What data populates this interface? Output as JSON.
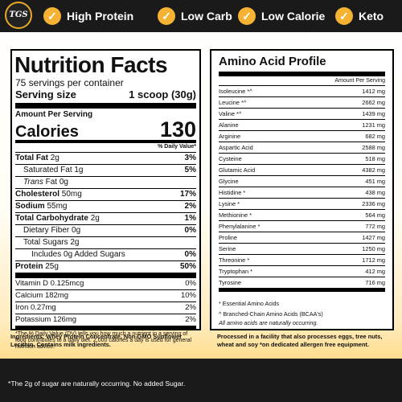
{
  "brand": {
    "logo_text": "TGS"
  },
  "badges": [
    "High Protein",
    "Low Carb",
    "Low Calorie",
    "Keto"
  ],
  "nutrition_facts": {
    "title": "Nutrition Facts",
    "servings_per_container": "75 servings per container",
    "serving_size_label": "Serving size",
    "serving_size_value": "1 scoop (30g)",
    "amount_per_serving": "Amount Per Serving",
    "calories_label": "Calories",
    "calories_value": "130",
    "dv_header": "% Daily Value*",
    "rows": [
      {
        "label": "Total Fat",
        "amount": "2g",
        "dv": "3%"
      },
      {
        "label": "Saturated Fat",
        "amount": "1g",
        "dv": "5%"
      },
      {
        "label": "Trans",
        "amount": "Fat 0g",
        "dv": ""
      },
      {
        "label": "Cholesterol",
        "amount": "50mg",
        "dv": "17%"
      },
      {
        "label": "Sodium",
        "amount": "55mg",
        "dv": "2%"
      },
      {
        "label": "Total Carbohydrate",
        "amount": "2g",
        "dv": "1%"
      },
      {
        "label": "Dietary Fiber",
        "amount": "0g",
        "dv": "0%"
      },
      {
        "label": "Total Sugars",
        "amount": "2g",
        "dv": ""
      },
      {
        "label": "Includes 0g Added Sugars",
        "amount": "",
        "dv": "0%"
      },
      {
        "label": "Protein",
        "amount": "25g",
        "dv": "50%"
      }
    ],
    "vitamins": [
      {
        "label": "Vitamin D 0.125mcg",
        "dv": "0%"
      },
      {
        "label": "Calcium 182mg",
        "dv": "10%"
      },
      {
        "label": "Iron 0.27mg",
        "dv": "2%"
      },
      {
        "label": "Potassium 126mg",
        "dv": "2%"
      }
    ],
    "footnote": "*The % Daily Value (DV) tells you how much a nutrient in a serving of food contributes to a daily diet. 2,000 calories a day is used for general nutrition advice."
  },
  "amino_acids": {
    "title": "Amino Acid Profile",
    "column_header": "Amount Per Serving",
    "rows": [
      {
        "name": "Isoleucine *^",
        "amount": "1412 mg"
      },
      {
        "name": "Leucine *^",
        "amount": "2662 mg"
      },
      {
        "name": "Valine *^",
        "amount": "1439 mg"
      },
      {
        "name": "Alanine",
        "amount": "1231 mg"
      },
      {
        "name": "Arginine",
        "amount": "682 mg"
      },
      {
        "name": "Aspartic Acid",
        "amount": "2588 mg"
      },
      {
        "name": "Cysteine",
        "amount": "518 mg"
      },
      {
        "name": "Glutamic Acid",
        "amount": "4382 mg"
      },
      {
        "name": "Glycine",
        "amount": "451 mg"
      },
      {
        "name": "Histidine *",
        "amount": "438 mg"
      },
      {
        "name": "Lysine *",
        "amount": "2336 mg"
      },
      {
        "name": "Methionine *",
        "amount": "564 mg"
      },
      {
        "name": "Phenylalanine *",
        "amount": "772 mg"
      },
      {
        "name": "Proline",
        "amount": "1427 mg"
      },
      {
        "name": "Serine",
        "amount": "1250 mg"
      },
      {
        "name": "Threonine *",
        "amount": "1712 mg"
      },
      {
        "name": "Tryptophan *",
        "amount": "412 mg"
      },
      {
        "name": "Tyrosine",
        "amount": "716 mg"
      }
    ],
    "note_essential": "* Essential Amino Acids",
    "note_bcaa": "^ Branched-Chain Amino Acids (BCAA's)",
    "note_natural": "All amino acids are naturally occurring."
  },
  "ingredients": "Ingredients: Whey Protein Concentrate, Non-GMO Sunflower Lecithin. Contains milk ingredients.",
  "facility": "Processed in a facility that also processes eggs, tree nuts, wheat and soy *on dedicated allergen free equipment.",
  "sugar_note": "*The 2g of sugar are naturally occurring. No added Sugar.",
  "colors": {
    "accent": "#f6b333",
    "dark": "#1a1a1a"
  }
}
